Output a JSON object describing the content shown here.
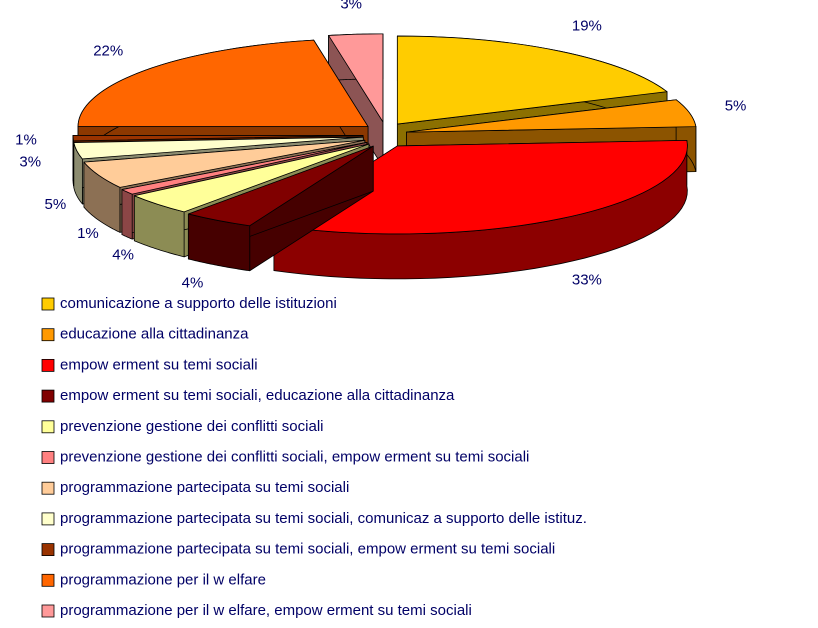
{
  "chart_data": {
    "type": "pie3d",
    "categories": [
      "comunicazione a supporto delle istituzioni",
      "educazione alla cittadinanza",
      "empow erment su temi sociali",
      "empow erment su temi sociali, educazione alla cittadinanza",
      "prevenzione gestione dei conflitti sociali",
      "prevenzione gestione dei conflitti sociali, empow erment su temi sociali",
      "programmazione partecipata su temi sociali",
      "programmazione partecipata su temi sociali, comunicaz a supporto delle istituz.",
      "programmazione partecipata su temi sociali, empow erment su temi sociali",
      "programmazione per il w elfare",
      "programmazione per il w elfare, empow erment su temi sociali"
    ],
    "values": [
      19,
      5,
      33,
      4,
      4,
      1,
      5,
      3,
      1,
      22,
      3
    ],
    "value_labels": [
      "19%",
      "5%",
      "33%",
      "4%",
      "4%",
      "1%",
      "5%",
      "3%",
      "1%",
      "22%",
      "3%"
    ],
    "colors": [
      "#FFCC00",
      "#FF9900",
      "#FF0000",
      "#800000",
      "#FFFF99",
      "#FF8080",
      "#FFCC99",
      "#FFFFCC",
      "#993300",
      "#FF6600",
      "#FF9999"
    ],
    "legend": "bottom"
  }
}
